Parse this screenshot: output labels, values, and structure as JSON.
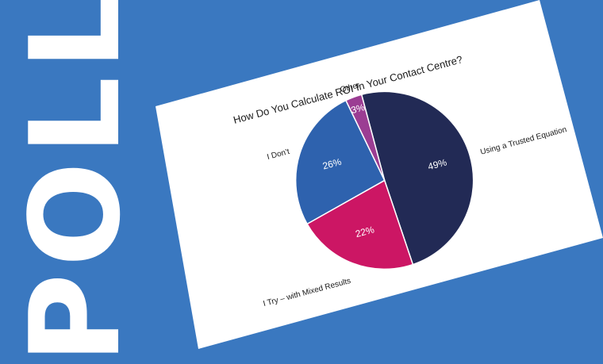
{
  "banner": {
    "word": "POLL"
  },
  "chart_data": {
    "type": "pie",
    "title": "How Do You Calculate ROI In Your Contact Centre?",
    "start_angle_deg": 0,
    "direction": "clockwise",
    "slices": [
      {
        "label": "Using a Trusted Equation",
        "value": 49,
        "pct_label": "49%",
        "color": "#222a55"
      },
      {
        "label": "I Try – with Mixed Results",
        "value": 22,
        "pct_label": "22%",
        "color": "#cc1664"
      },
      {
        "label": "I Don’t",
        "value": 26,
        "pct_label": "26%",
        "color": "#2e62ae"
      },
      {
        "label": "Other",
        "value": 3,
        "pct_label": "3%",
        "color": "#9b3d93"
      }
    ]
  },
  "colors": {
    "background": "#3a78c0",
    "card": "#ffffff",
    "text": "#1a1a1a"
  }
}
